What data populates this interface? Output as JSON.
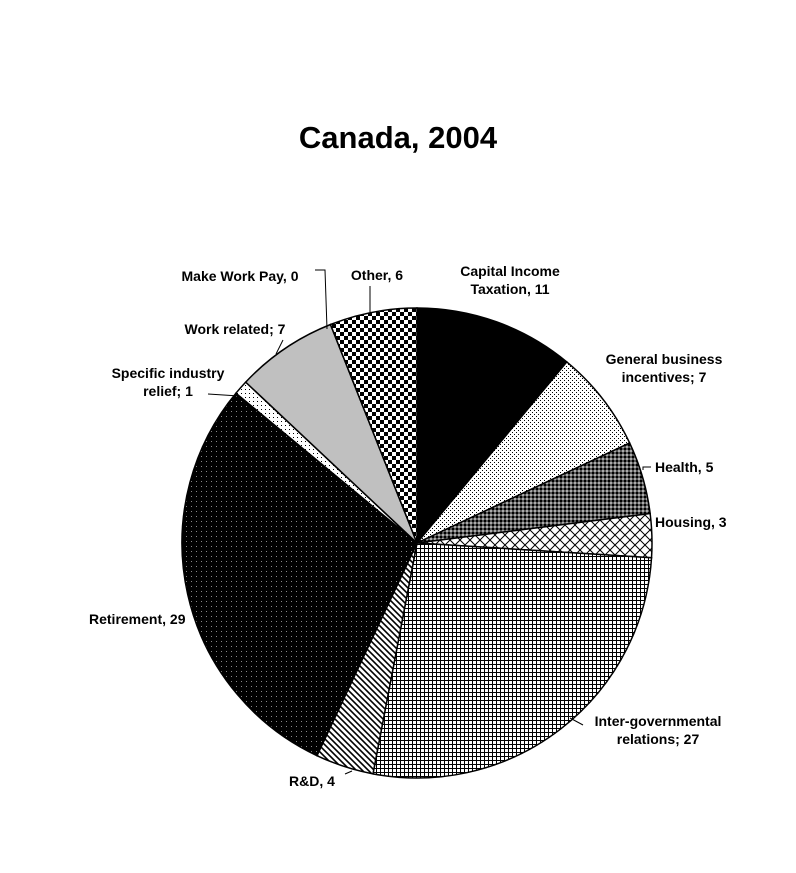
{
  "chart_data": {
    "type": "pie",
    "title": "Canada, 2004",
    "slices": [
      {
        "label_lines": [
          "Capital Income",
          "Taxation, 11"
        ],
        "category": "Capital Income Taxation",
        "value": 11
      },
      {
        "label_lines": [
          "General business",
          "incentives; 7"
        ],
        "category": "General business incentives",
        "value": 7
      },
      {
        "label_lines": [
          "Health, 5"
        ],
        "category": "Health",
        "value": 5
      },
      {
        "label_lines": [
          "Housing, 3"
        ],
        "category": "Housing",
        "value": 3
      },
      {
        "label_lines": [
          "Inter-governmental",
          "relations; 27"
        ],
        "category": "Inter-governmental relations",
        "value": 27
      },
      {
        "label_lines": [
          "R&D, 4"
        ],
        "category": "R&D",
        "value": 4
      },
      {
        "label_lines": [
          "Retirement, 29"
        ],
        "category": "Retirement",
        "value": 29
      },
      {
        "label_lines": [
          "Specific industry",
          "relief; 1"
        ],
        "category": "Specific industry relief",
        "value": 1
      },
      {
        "label_lines": [
          "Work related; 7"
        ],
        "category": "Work related",
        "value": 7
      },
      {
        "label_lines": [
          "Make Work Pay, 0"
        ],
        "category": "Make Work Pay",
        "value": 0
      },
      {
        "label_lines": [
          "Other, 6"
        ],
        "category": "Other",
        "value": 6
      }
    ]
  }
}
